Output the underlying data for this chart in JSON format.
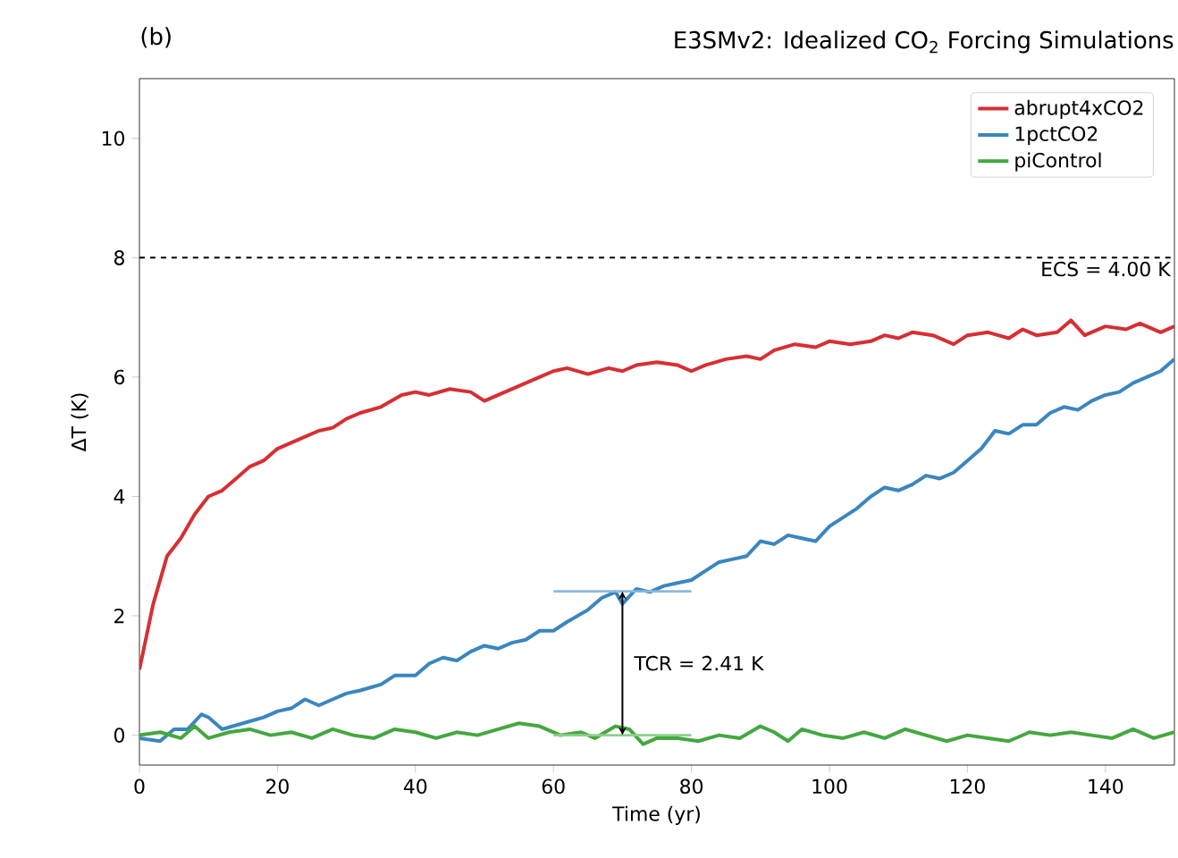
{
  "chart_data": {
    "type": "line",
    "title": "E3SMv2: Idealized CO$_{2}$ Forcing Simulations",
    "xlabel": "Time (yr)",
    "ylabel": "ΔT (K)",
    "xlim": [
      0,
      150
    ],
    "xticks": [
      0,
      20,
      40,
      60,
      80,
      100,
      120,
      140
    ],
    "ylim": [
      -0.5,
      11
    ],
    "yticks": [
      0,
      2,
      4,
      6,
      8,
      10
    ],
    "grid": false,
    "legend": "top right",
    "series": [
      {
        "name": "abrupt4xCO2",
        "color": "#d62f34",
        "x": [
          0,
          2,
          4,
          6,
          8,
          10,
          12,
          14,
          16,
          18,
          20,
          22,
          24,
          26,
          28,
          30,
          32,
          35,
          38,
          40,
          42,
          45,
          48,
          50,
          52,
          55,
          58,
          60,
          62,
          65,
          68,
          70,
          72,
          75,
          78,
          80,
          82,
          85,
          88,
          90,
          92,
          95,
          98,
          100,
          103,
          106,
          108,
          110,
          112,
          115,
          118,
          120,
          123,
          126,
          128,
          130,
          133,
          135,
          137,
          140,
          143,
          145,
          148,
          150
        ],
        "values": [
          1.1,
          2.2,
          3.0,
          3.3,
          3.7,
          4.0,
          4.1,
          4.3,
          4.5,
          4.6,
          4.8,
          4.9,
          5.0,
          5.1,
          5.15,
          5.3,
          5.4,
          5.5,
          5.7,
          5.75,
          5.7,
          5.8,
          5.75,
          5.6,
          5.7,
          5.85,
          6.0,
          6.1,
          6.15,
          6.05,
          6.15,
          6.1,
          6.2,
          6.25,
          6.2,
          6.1,
          6.2,
          6.3,
          6.35,
          6.3,
          6.45,
          6.55,
          6.5,
          6.6,
          6.55,
          6.6,
          6.7,
          6.65,
          6.75,
          6.7,
          6.55,
          6.7,
          6.75,
          6.65,
          6.8,
          6.7,
          6.75,
          6.95,
          6.7,
          6.85,
          6.8,
          6.9,
          6.75,
          6.85
        ]
      },
      {
        "name": "1pctCO2",
        "color": "#3a86c0",
        "x": [
          0,
          3,
          5,
          7,
          9,
          10,
          12,
          15,
          18,
          20,
          22,
          24,
          26,
          28,
          30,
          32,
          35,
          37,
          40,
          42,
          44,
          46,
          48,
          50,
          52,
          54,
          56,
          58,
          60,
          62,
          65,
          67,
          69,
          70,
          72,
          74,
          76,
          78,
          80,
          82,
          84,
          86,
          88,
          90,
          92,
          94,
          96,
          98,
          100,
          102,
          104,
          106,
          108,
          110,
          112,
          114,
          116,
          118,
          120,
          122,
          124,
          126,
          128,
          130,
          132,
          134,
          136,
          138,
          140,
          142,
          144,
          146,
          148,
          150
        ],
        "values": [
          -0.05,
          -0.1,
          0.1,
          0.1,
          0.35,
          0.3,
          0.1,
          0.2,
          0.3,
          0.4,
          0.45,
          0.6,
          0.5,
          0.6,
          0.7,
          0.75,
          0.85,
          1.0,
          1.0,
          1.2,
          1.3,
          1.25,
          1.4,
          1.5,
          1.45,
          1.55,
          1.6,
          1.75,
          1.75,
          1.9,
          2.1,
          2.3,
          2.4,
          2.2,
          2.45,
          2.4,
          2.5,
          2.55,
          2.6,
          2.75,
          2.9,
          2.95,
          3.0,
          3.25,
          3.2,
          3.35,
          3.3,
          3.25,
          3.5,
          3.65,
          3.8,
          4.0,
          4.15,
          4.1,
          4.2,
          4.35,
          4.3,
          4.4,
          4.6,
          4.8,
          5.1,
          5.05,
          5.2,
          5.2,
          5.4,
          5.5,
          5.45,
          5.6,
          5.7,
          5.75,
          5.9,
          6.0,
          6.1,
          6.3
        ]
      },
      {
        "name": "piControl",
        "color": "#44a840",
        "x": [
          0,
          3,
          6,
          8,
          10,
          13,
          16,
          19,
          22,
          25,
          28,
          31,
          34,
          37,
          40,
          43,
          46,
          49,
          52,
          55,
          58,
          61,
          64,
          66,
          69,
          71,
          73,
          75,
          78,
          81,
          84,
          87,
          90,
          92,
          94,
          96,
          99,
          102,
          105,
          108,
          111,
          114,
          117,
          120,
          123,
          126,
          129,
          132,
          135,
          138,
          141,
          144,
          147,
          150
        ],
        "values": [
          0.0,
          0.05,
          -0.05,
          0.15,
          -0.05,
          0.05,
          0.1,
          0.0,
          0.05,
          -0.05,
          0.1,
          0.0,
          -0.05,
          0.1,
          0.05,
          -0.05,
          0.05,
          0.0,
          0.1,
          0.2,
          0.15,
          0.0,
          0.05,
          -0.05,
          0.15,
          0.1,
          -0.15,
          -0.05,
          -0.05,
          -0.1,
          0.0,
          -0.05,
          0.15,
          0.05,
          -0.1,
          0.1,
          0.0,
          -0.05,
          0.05,
          -0.05,
          0.1,
          0.0,
          -0.1,
          0.0,
          -0.05,
          -0.1,
          0.05,
          0.0,
          0.05,
          0.0,
          -0.05,
          0.1,
          -0.05,
          0.05
        ]
      },
      {
        "color": "#8cb9dd",
        "x": [
          60,
          80
        ],
        "values": [
          2.41,
          2.41
        ]
      },
      {
        "color": "#8fd08b",
        "x": [
          60,
          80
        ],
        "values": [
          0,
          0
        ]
      }
    ],
    "ref_lines": [
      {
        "axis": "y",
        "value": 8,
        "color": "#000000",
        "line_style": "dashed"
      }
    ],
    "annotations": [
      "(b)",
      "TCR = 2.41 K",
      "ECS = 4.00 K"
    ]
  }
}
